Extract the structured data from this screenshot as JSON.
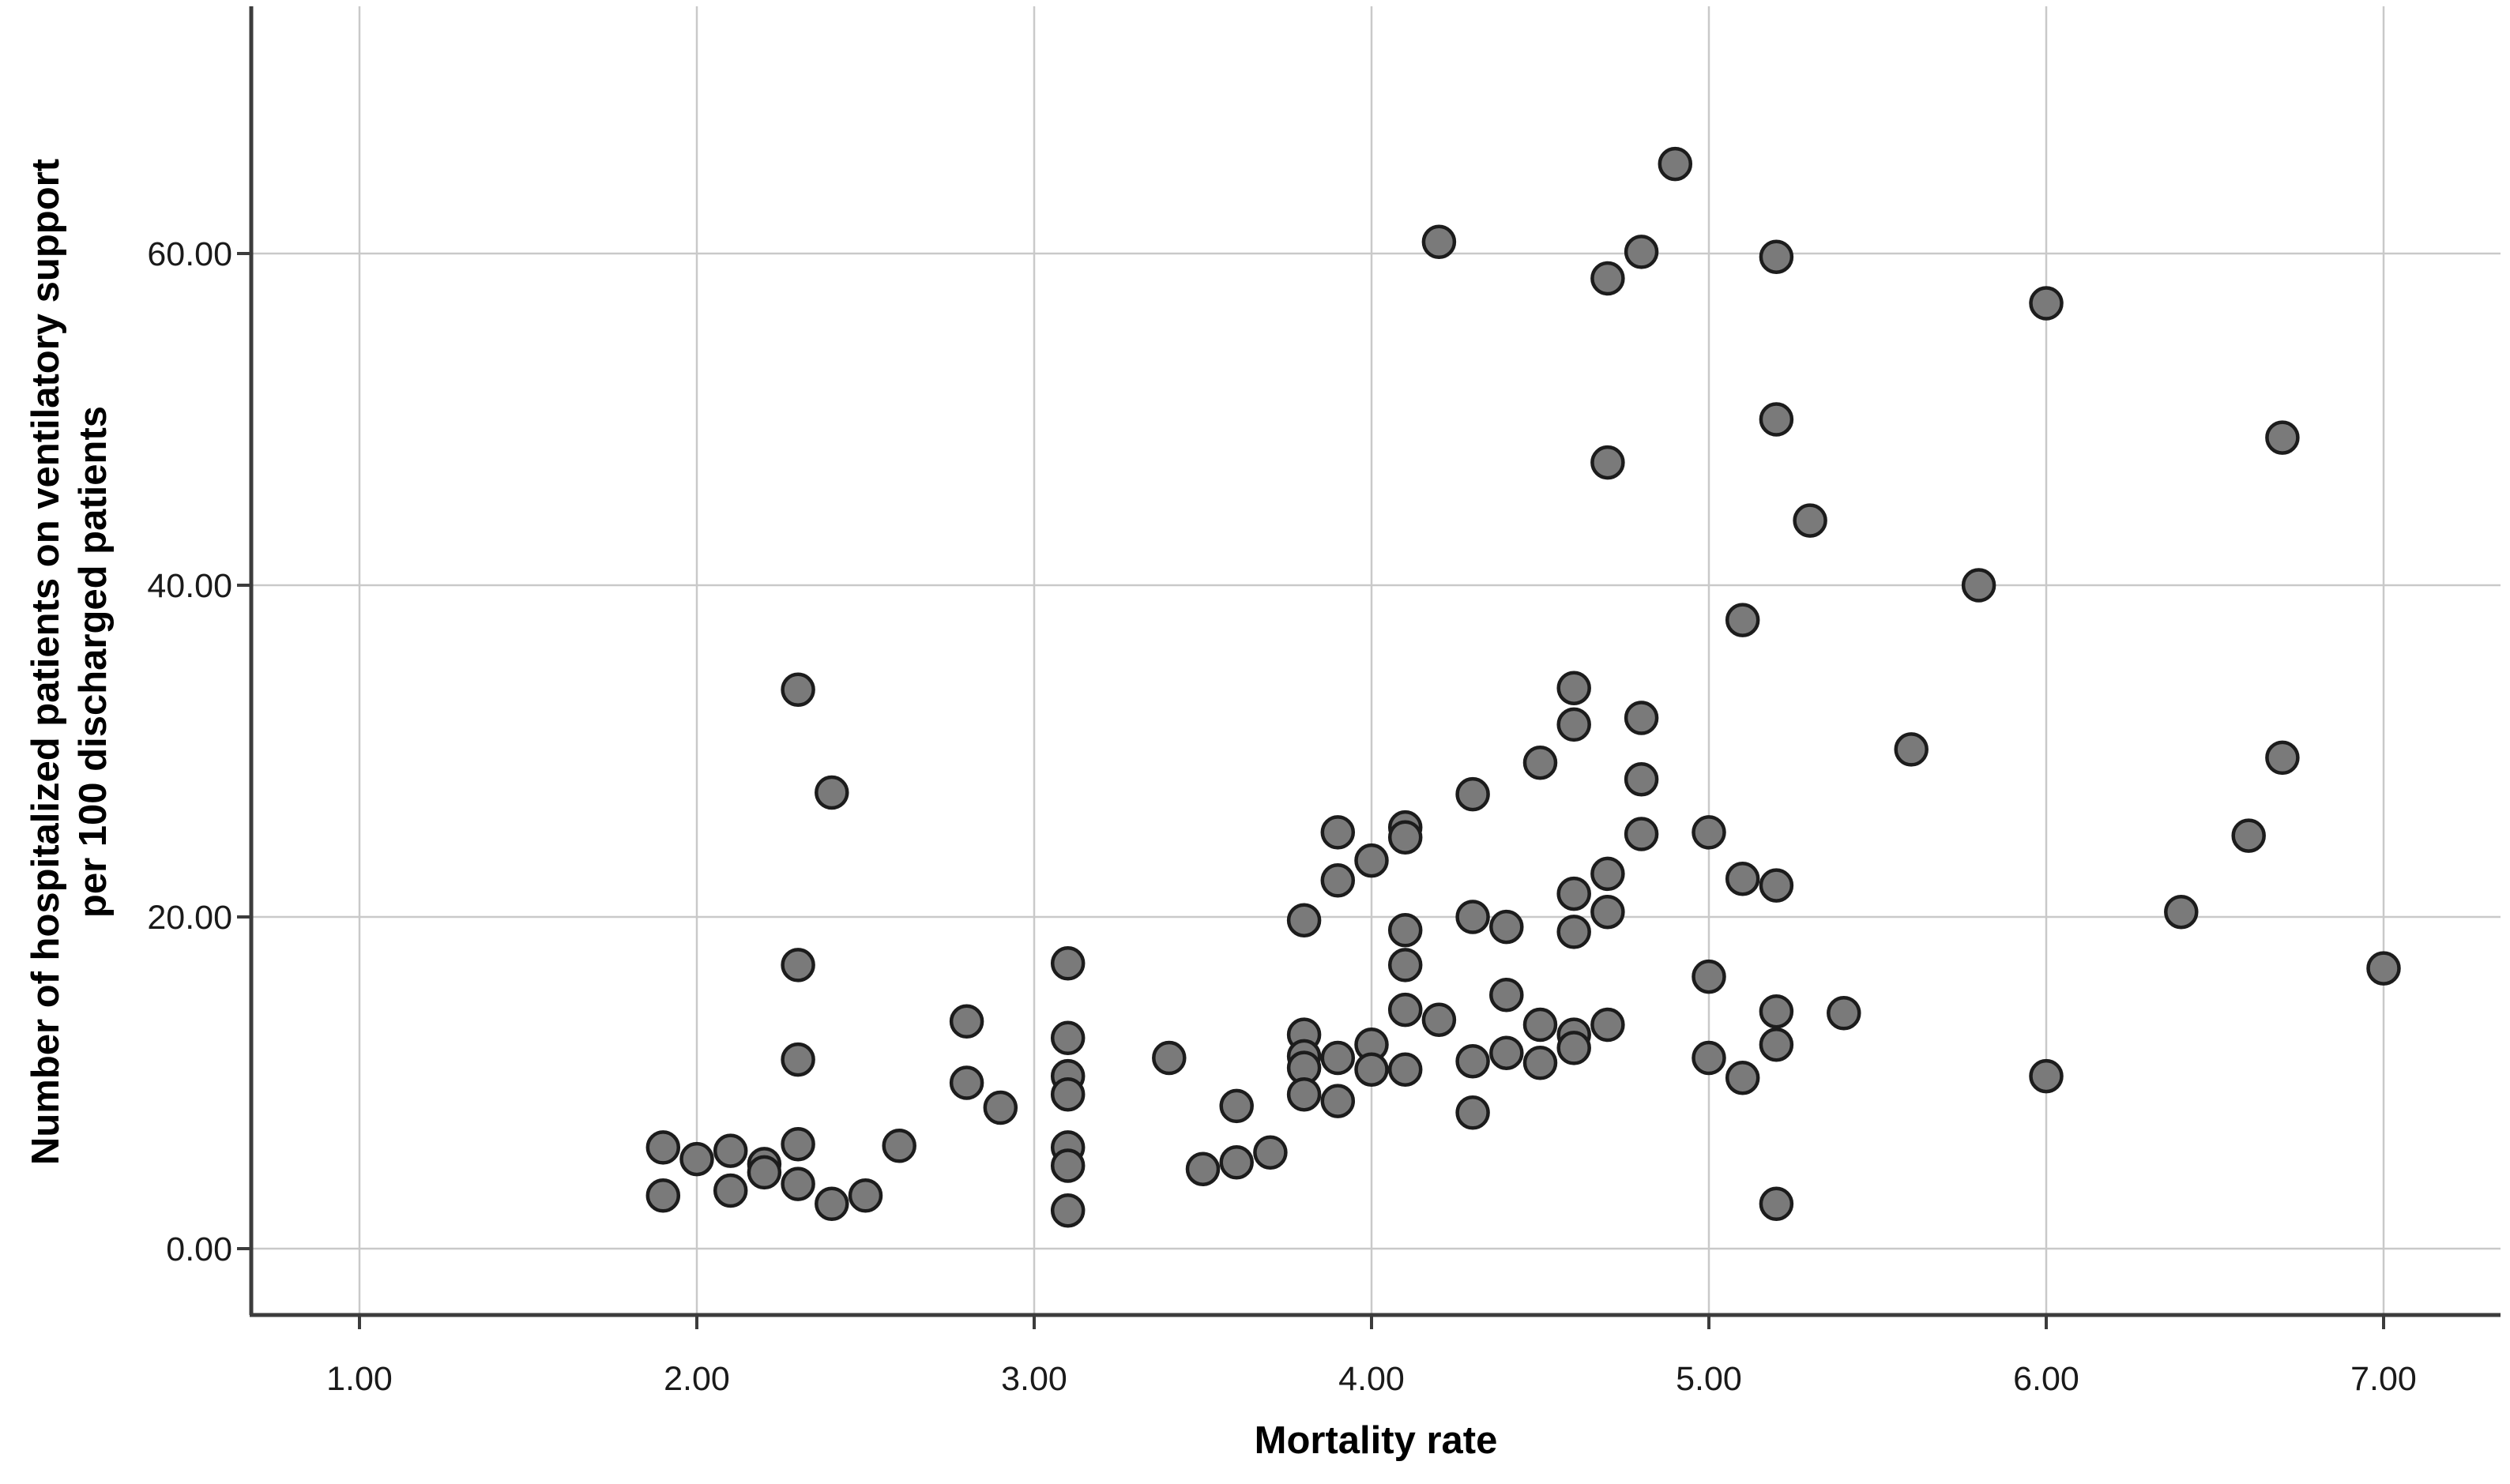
{
  "chart_data": {
    "type": "scatter",
    "title": "",
    "xlabel": "Mortality rate",
    "ylabel_lines": [
      "Number of hospitalized patients on ventilatory support",
      "per 100 discharged patients"
    ],
    "x_tick_values": [
      1,
      2,
      3,
      4,
      5,
      6,
      7
    ],
    "x_tick_labels": [
      "1.00",
      "2.00",
      "3.00",
      "4.00",
      "5.00",
      "6.00",
      "7.00"
    ],
    "y_tick_values": [
      0,
      20,
      40,
      60
    ],
    "y_tick_labels": [
      "0.00",
      "20.00",
      "40.00",
      "60.00"
    ],
    "xlim": [
      0.68,
      7.35
    ],
    "ylim": [
      -4.0,
      74.9
    ],
    "grid": true,
    "legend": "none",
    "colors": {
      "marker_fill": "#7a7a7a",
      "marker_stroke": "#1c1c1c",
      "gridline": "#c9c9c9",
      "axis": "#3c3c3c",
      "tick_label": "#1a1a1a"
    },
    "points": [
      [
        1.9,
        6.1
      ],
      [
        1.9,
        3.2
      ],
      [
        2.0,
        5.4
      ],
      [
        2.1,
        5.9
      ],
      [
        2.1,
        3.5
      ],
      [
        2.2,
        5.1
      ],
      [
        2.2,
        4.6
      ],
      [
        2.3,
        6.3
      ],
      [
        2.3,
        3.9
      ],
      [
        2.4,
        2.7
      ],
      [
        2.5,
        3.2
      ],
      [
        2.6,
        6.2
      ],
      [
        2.3,
        33.7
      ],
      [
        2.3,
        17.1
      ],
      [
        2.3,
        11.4
      ],
      [
        2.4,
        27.5
      ],
      [
        2.8,
        13.7
      ],
      [
        2.8,
        10.0
      ],
      [
        2.9,
        8.5
      ],
      [
        3.1,
        17.2
      ],
      [
        3.1,
        12.7
      ],
      [
        3.1,
        10.4
      ],
      [
        3.1,
        9.3
      ],
      [
        3.1,
        6.1
      ],
      [
        3.1,
        5.0
      ],
      [
        3.1,
        2.3
      ],
      [
        3.4,
        11.5
      ],
      [
        3.5,
        4.8
      ],
      [
        3.6,
        5.2
      ],
      [
        3.6,
        8.6
      ],
      [
        3.7,
        5.8
      ],
      [
        3.8,
        19.8
      ],
      [
        3.8,
        12.9
      ],
      [
        3.8,
        11.6
      ],
      [
        3.8,
        10.9
      ],
      [
        3.8,
        9.3
      ],
      [
        3.9,
        25.1
      ],
      [
        3.9,
        22.2
      ],
      [
        3.9,
        11.5
      ],
      [
        3.9,
        8.9
      ],
      [
        4.0,
        23.4
      ],
      [
        4.0,
        12.3
      ],
      [
        4.0,
        10.8
      ],
      [
        4.1,
        25.4
      ],
      [
        4.1,
        24.8
      ],
      [
        4.1,
        19.2
      ],
      [
        4.1,
        17.1
      ],
      [
        4.1,
        14.4
      ],
      [
        4.1,
        10.8
      ],
      [
        4.2,
        60.7
      ],
      [
        4.2,
        13.8
      ],
      [
        4.3,
        27.4
      ],
      [
        4.3,
        20.0
      ],
      [
        4.3,
        11.3
      ],
      [
        4.3,
        8.2
      ],
      [
        4.4,
        19.4
      ],
      [
        4.4,
        15.3
      ],
      [
        4.4,
        11.8
      ],
      [
        4.5,
        29.3
      ],
      [
        4.5,
        13.5
      ],
      [
        4.5,
        11.2
      ],
      [
        4.6,
        33.8
      ],
      [
        4.6,
        31.6
      ],
      [
        4.6,
        21.4
      ],
      [
        4.6,
        19.1
      ],
      [
        4.6,
        12.9
      ],
      [
        4.6,
        12.1
      ],
      [
        4.7,
        58.5
      ],
      [
        4.7,
        47.4
      ],
      [
        4.7,
        22.6
      ],
      [
        4.7,
        20.3
      ],
      [
        4.7,
        13.5
      ],
      [
        4.8,
        60.1
      ],
      [
        4.8,
        32.0
      ],
      [
        4.8,
        28.3
      ],
      [
        4.8,
        25.0
      ],
      [
        4.9,
        65.4
      ],
      [
        5.0,
        25.1
      ],
      [
        5.0,
        16.4
      ],
      [
        5.0,
        11.5
      ],
      [
        5.1,
        37.9
      ],
      [
        5.1,
        22.3
      ],
      [
        5.1,
        10.3
      ],
      [
        5.2,
        59.8
      ],
      [
        5.2,
        50.0
      ],
      [
        5.2,
        21.9
      ],
      [
        5.2,
        14.3
      ],
      [
        5.2,
        12.3
      ],
      [
        5.2,
        2.7
      ],
      [
        5.3,
        43.9
      ],
      [
        5.4,
        14.2
      ],
      [
        5.6,
        30.1
      ],
      [
        5.8,
        40.0
      ],
      [
        6.0,
        57.0
      ],
      [
        6.0,
        10.4
      ],
      [
        6.4,
        20.3
      ],
      [
        6.6,
        24.9
      ],
      [
        6.7,
        48.9
      ],
      [
        6.7,
        29.6
      ],
      [
        7.0,
        16.9
      ]
    ]
  }
}
